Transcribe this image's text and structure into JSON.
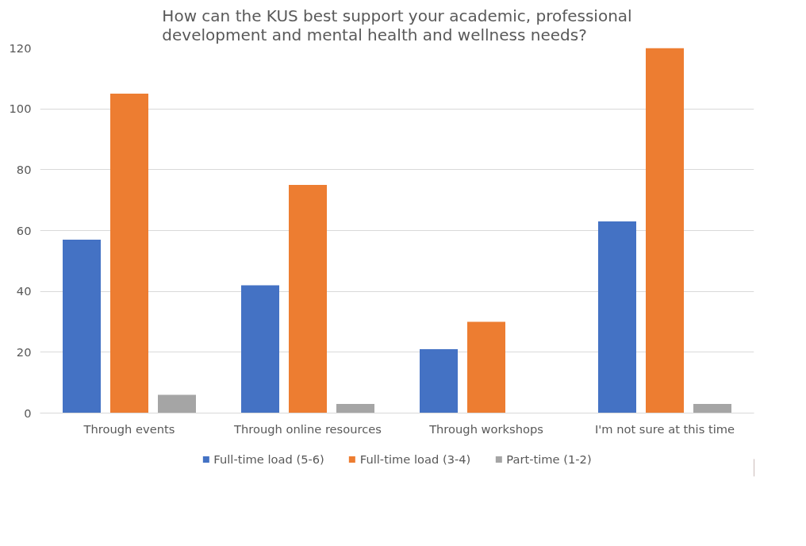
{
  "chart_data": {
    "type": "bar",
    "title": "How can the KUS best support your academic, professional development and mental health and wellness needs?",
    "categories": [
      "Through events",
      "Through online resources",
      "Through workshops",
      "I'm not sure at this time"
    ],
    "series": [
      {
        "name": "Full-time load (5-6)",
        "color": "#4472c4",
        "values": [
          57,
          42,
          21,
          63
        ]
      },
      {
        "name": "Full-time load (3-4)",
        "color": "#ed7d31",
        "values": [
          105,
          75,
          30,
          120
        ]
      },
      {
        "name": "Part-time (1-2)",
        "color": "#a5a5a5",
        "values": [
          6,
          3,
          0,
          3
        ]
      }
    ],
    "ylim": [
      0,
      120
    ],
    "yticks": [
      0,
      20,
      40,
      60,
      80,
      100,
      120
    ],
    "grid": "y",
    "legend": "bottom"
  }
}
